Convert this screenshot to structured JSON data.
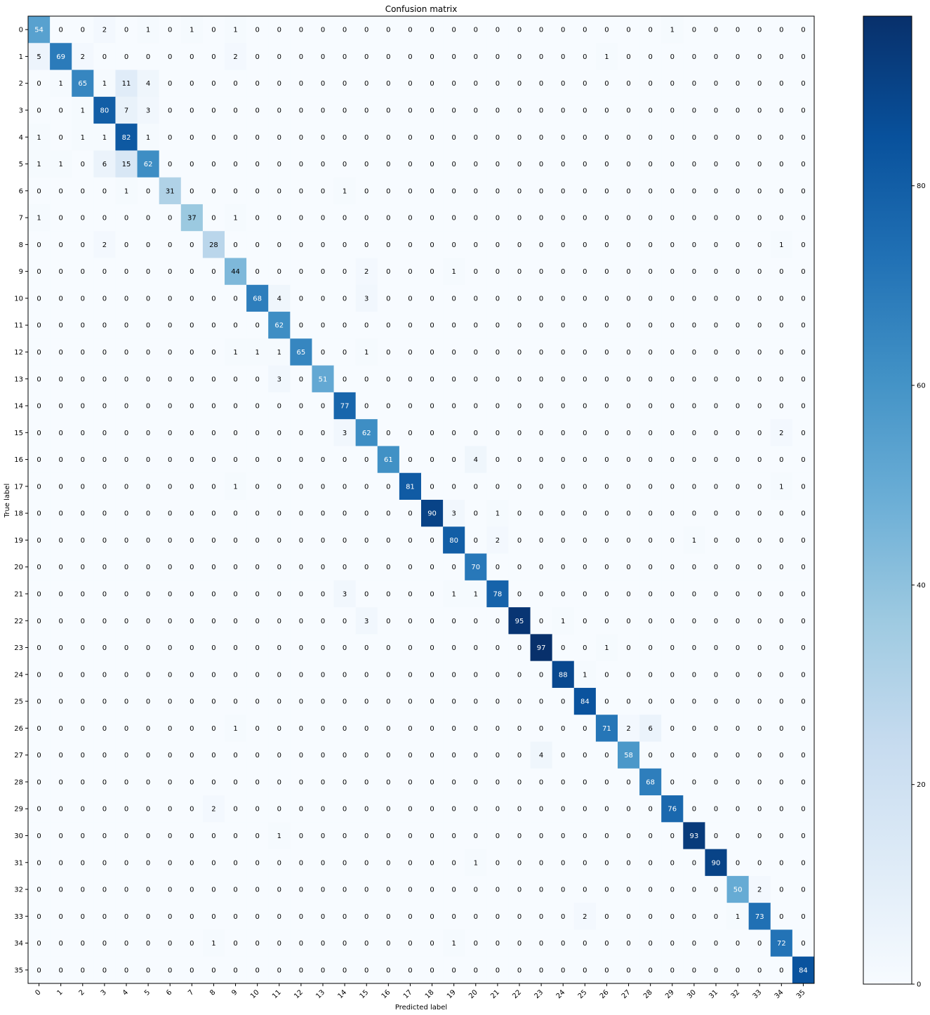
{
  "chart_data": {
    "type": "heatmap",
    "title": "Confusion matrix",
    "xlabel": "Predicted label",
    "ylabel": "True label",
    "x_categories": [
      "0",
      "1",
      "2",
      "3",
      "4",
      "5",
      "6",
      "7",
      "8",
      "9",
      "10",
      "11",
      "12",
      "13",
      "14",
      "15",
      "16",
      "17",
      "18",
      "19",
      "20",
      "21",
      "22",
      "23",
      "24",
      "25",
      "26",
      "27",
      "28",
      "29",
      "30",
      "31",
      "32",
      "33",
      "34",
      "35"
    ],
    "y_categories": [
      "0",
      "1",
      "2",
      "3",
      "4",
      "5",
      "6",
      "7",
      "8",
      "9",
      "10",
      "11",
      "12",
      "13",
      "14",
      "15",
      "16",
      "17",
      "18",
      "19",
      "20",
      "21",
      "22",
      "23",
      "24",
      "25",
      "26",
      "27",
      "28",
      "29",
      "30",
      "31",
      "32",
      "33",
      "34",
      "35"
    ],
    "values": [
      [
        54,
        0,
        0,
        2,
        0,
        1,
        0,
        1,
        0,
        1,
        0,
        0,
        0,
        0,
        0,
        0,
        0,
        0,
        0,
        0,
        0,
        0,
        0,
        0,
        0,
        0,
        0,
        0,
        0,
        1,
        0,
        0,
        0,
        0,
        0,
        0
      ],
      [
        5,
        69,
        2,
        0,
        0,
        0,
        0,
        0,
        0,
        2,
        0,
        0,
        0,
        0,
        0,
        0,
        0,
        0,
        0,
        0,
        0,
        0,
        0,
        0,
        0,
        0,
        1,
        0,
        0,
        0,
        0,
        0,
        0,
        0,
        0,
        0
      ],
      [
        0,
        1,
        65,
        1,
        11,
        4,
        0,
        0,
        0,
        0,
        0,
        0,
        0,
        0,
        0,
        0,
        0,
        0,
        0,
        0,
        0,
        0,
        0,
        0,
        0,
        0,
        0,
        0,
        0,
        0,
        0,
        0,
        0,
        0,
        0,
        0
      ],
      [
        0,
        0,
        1,
        80,
        7,
        3,
        0,
        0,
        0,
        0,
        0,
        0,
        0,
        0,
        0,
        0,
        0,
        0,
        0,
        0,
        0,
        0,
        0,
        0,
        0,
        0,
        0,
        0,
        0,
        0,
        0,
        0,
        0,
        0,
        0,
        0
      ],
      [
        1,
        0,
        1,
        1,
        82,
        1,
        0,
        0,
        0,
        0,
        0,
        0,
        0,
        0,
        0,
        0,
        0,
        0,
        0,
        0,
        0,
        0,
        0,
        0,
        0,
        0,
        0,
        0,
        0,
        0,
        0,
        0,
        0,
        0,
        0,
        0
      ],
      [
        1,
        1,
        0,
        6,
        15,
        62,
        0,
        0,
        0,
        0,
        0,
        0,
        0,
        0,
        0,
        0,
        0,
        0,
        0,
        0,
        0,
        0,
        0,
        0,
        0,
        0,
        0,
        0,
        0,
        0,
        0,
        0,
        0,
        0,
        0,
        0
      ],
      [
        0,
        0,
        0,
        0,
        1,
        0,
        31,
        0,
        0,
        0,
        0,
        0,
        0,
        0,
        1,
        0,
        0,
        0,
        0,
        0,
        0,
        0,
        0,
        0,
        0,
        0,
        0,
        0,
        0,
        0,
        0,
        0,
        0,
        0,
        0,
        0
      ],
      [
        1,
        0,
        0,
        0,
        0,
        0,
        0,
        37,
        0,
        1,
        0,
        0,
        0,
        0,
        0,
        0,
        0,
        0,
        0,
        0,
        0,
        0,
        0,
        0,
        0,
        0,
        0,
        0,
        0,
        0,
        0,
        0,
        0,
        0,
        0,
        0
      ],
      [
        0,
        0,
        0,
        2,
        0,
        0,
        0,
        0,
        28,
        0,
        0,
        0,
        0,
        0,
        0,
        0,
        0,
        0,
        0,
        0,
        0,
        0,
        0,
        0,
        0,
        0,
        0,
        0,
        0,
        0,
        0,
        0,
        0,
        0,
        1,
        0
      ],
      [
        0,
        0,
        0,
        0,
        0,
        0,
        0,
        0,
        0,
        44,
        0,
        0,
        0,
        0,
        0,
        2,
        0,
        0,
        0,
        1,
        0,
        0,
        0,
        0,
        0,
        0,
        0,
        0,
        0,
        0,
        0,
        0,
        0,
        0,
        0,
        0
      ],
      [
        0,
        0,
        0,
        0,
        0,
        0,
        0,
        0,
        0,
        0,
        68,
        4,
        0,
        0,
        0,
        3,
        0,
        0,
        0,
        0,
        0,
        0,
        0,
        0,
        0,
        0,
        0,
        0,
        0,
        0,
        0,
        0,
        0,
        0,
        0,
        0
      ],
      [
        0,
        0,
        0,
        0,
        0,
        0,
        0,
        0,
        0,
        0,
        0,
        62,
        0,
        0,
        0,
        0,
        0,
        0,
        0,
        0,
        0,
        0,
        0,
        0,
        0,
        0,
        0,
        0,
        0,
        0,
        0,
        0,
        0,
        0,
        0,
        0
      ],
      [
        0,
        0,
        0,
        0,
        0,
        0,
        0,
        0,
        0,
        1,
        1,
        1,
        65,
        0,
        0,
        1,
        0,
        0,
        0,
        0,
        0,
        0,
        0,
        0,
        0,
        0,
        0,
        0,
        0,
        0,
        0,
        0,
        0,
        0,
        0,
        0
      ],
      [
        0,
        0,
        0,
        0,
        0,
        0,
        0,
        0,
        0,
        0,
        0,
        3,
        0,
        51,
        0,
        0,
        0,
        0,
        0,
        0,
        0,
        0,
        0,
        0,
        0,
        0,
        0,
        0,
        0,
        0,
        0,
        0,
        0,
        0,
        0,
        0
      ],
      [
        0,
        0,
        0,
        0,
        0,
        0,
        0,
        0,
        0,
        0,
        0,
        0,
        0,
        0,
        77,
        0,
        0,
        0,
        0,
        0,
        0,
        0,
        0,
        0,
        0,
        0,
        0,
        0,
        0,
        0,
        0,
        0,
        0,
        0,
        0,
        0
      ],
      [
        0,
        0,
        0,
        0,
        0,
        0,
        0,
        0,
        0,
        0,
        0,
        0,
        0,
        0,
        3,
        62,
        0,
        0,
        0,
        0,
        0,
        0,
        0,
        0,
        0,
        0,
        0,
        0,
        0,
        0,
        0,
        0,
        0,
        0,
        2,
        0
      ],
      [
        0,
        0,
        0,
        0,
        0,
        0,
        0,
        0,
        0,
        0,
        0,
        0,
        0,
        0,
        0,
        0,
        61,
        0,
        0,
        0,
        4,
        0,
        0,
        0,
        0,
        0,
        0,
        0,
        0,
        0,
        0,
        0,
        0,
        0,
        0,
        0
      ],
      [
        0,
        0,
        0,
        0,
        0,
        0,
        0,
        0,
        0,
        1,
        0,
        0,
        0,
        0,
        0,
        0,
        0,
        81,
        0,
        0,
        0,
        0,
        0,
        0,
        0,
        0,
        0,
        0,
        0,
        0,
        0,
        0,
        0,
        0,
        1,
        0
      ],
      [
        0,
        0,
        0,
        0,
        0,
        0,
        0,
        0,
        0,
        0,
        0,
        0,
        0,
        0,
        0,
        0,
        0,
        0,
        90,
        3,
        0,
        1,
        0,
        0,
        0,
        0,
        0,
        0,
        0,
        0,
        0,
        0,
        0,
        0,
        0,
        0
      ],
      [
        0,
        0,
        0,
        0,
        0,
        0,
        0,
        0,
        0,
        0,
        0,
        0,
        0,
        0,
        0,
        0,
        0,
        0,
        0,
        80,
        0,
        2,
        0,
        0,
        0,
        0,
        0,
        0,
        0,
        0,
        1,
        0,
        0,
        0,
        0,
        0
      ],
      [
        0,
        0,
        0,
        0,
        0,
        0,
        0,
        0,
        0,
        0,
        0,
        0,
        0,
        0,
        0,
        0,
        0,
        0,
        0,
        0,
        70,
        0,
        0,
        0,
        0,
        0,
        0,
        0,
        0,
        0,
        0,
        0,
        0,
        0,
        0,
        0
      ],
      [
        0,
        0,
        0,
        0,
        0,
        0,
        0,
        0,
        0,
        0,
        0,
        0,
        0,
        0,
        3,
        0,
        0,
        0,
        0,
        1,
        1,
        78,
        0,
        0,
        0,
        0,
        0,
        0,
        0,
        0,
        0,
        0,
        0,
        0,
        0,
        0
      ],
      [
        0,
        0,
        0,
        0,
        0,
        0,
        0,
        0,
        0,
        0,
        0,
        0,
        0,
        0,
        0,
        3,
        0,
        0,
        0,
        0,
        0,
        0,
        95,
        0,
        1,
        0,
        0,
        0,
        0,
        0,
        0,
        0,
        0,
        0,
        0,
        0
      ],
      [
        0,
        0,
        0,
        0,
        0,
        0,
        0,
        0,
        0,
        0,
        0,
        0,
        0,
        0,
        0,
        0,
        0,
        0,
        0,
        0,
        0,
        0,
        0,
        97,
        0,
        0,
        1,
        0,
        0,
        0,
        0,
        0,
        0,
        0,
        0,
        0
      ],
      [
        0,
        0,
        0,
        0,
        0,
        0,
        0,
        0,
        0,
        0,
        0,
        0,
        0,
        0,
        0,
        0,
        0,
        0,
        0,
        0,
        0,
        0,
        0,
        0,
        88,
        1,
        0,
        0,
        0,
        0,
        0,
        0,
        0,
        0,
        0,
        0
      ],
      [
        0,
        0,
        0,
        0,
        0,
        0,
        0,
        0,
        0,
        0,
        0,
        0,
        0,
        0,
        0,
        0,
        0,
        0,
        0,
        0,
        0,
        0,
        0,
        0,
        0,
        84,
        0,
        0,
        0,
        0,
        0,
        0,
        0,
        0,
        0,
        0
      ],
      [
        0,
        0,
        0,
        0,
        0,
        0,
        0,
        0,
        0,
        1,
        0,
        0,
        0,
        0,
        0,
        0,
        0,
        0,
        0,
        0,
        0,
        0,
        0,
        0,
        0,
        0,
        71,
        2,
        6,
        0,
        0,
        0,
        0,
        0,
        0,
        0
      ],
      [
        0,
        0,
        0,
        0,
        0,
        0,
        0,
        0,
        0,
        0,
        0,
        0,
        0,
        0,
        0,
        0,
        0,
        0,
        0,
        0,
        0,
        0,
        0,
        4,
        0,
        0,
        0,
        58,
        0,
        0,
        0,
        0,
        0,
        0,
        0,
        0
      ],
      [
        0,
        0,
        0,
        0,
        0,
        0,
        0,
        0,
        0,
        0,
        0,
        0,
        0,
        0,
        0,
        0,
        0,
        0,
        0,
        0,
        0,
        0,
        0,
        0,
        0,
        0,
        0,
        0,
        68,
        0,
        0,
        0,
        0,
        0,
        0,
        0
      ],
      [
        0,
        0,
        0,
        0,
        0,
        0,
        0,
        0,
        2,
        0,
        0,
        0,
        0,
        0,
        0,
        0,
        0,
        0,
        0,
        0,
        0,
        0,
        0,
        0,
        0,
        0,
        0,
        0,
        0,
        76,
        0,
        0,
        0,
        0,
        0,
        0
      ],
      [
        0,
        0,
        0,
        0,
        0,
        0,
        0,
        0,
        0,
        0,
        0,
        1,
        0,
        0,
        0,
        0,
        0,
        0,
        0,
        0,
        0,
        0,
        0,
        0,
        0,
        0,
        0,
        0,
        0,
        0,
        93,
        0,
        0,
        0,
        0,
        0
      ],
      [
        0,
        0,
        0,
        0,
        0,
        0,
        0,
        0,
        0,
        0,
        0,
        0,
        0,
        0,
        0,
        0,
        0,
        0,
        0,
        0,
        1,
        0,
        0,
        0,
        0,
        0,
        0,
        0,
        0,
        0,
        0,
        90,
        0,
        0,
        0,
        0
      ],
      [
        0,
        0,
        0,
        0,
        0,
        0,
        0,
        0,
        0,
        0,
        0,
        0,
        0,
        0,
        0,
        0,
        0,
        0,
        0,
        0,
        0,
        0,
        0,
        0,
        0,
        0,
        0,
        0,
        0,
        0,
        0,
        0,
        50,
        2,
        0,
        0
      ],
      [
        0,
        0,
        0,
        0,
        0,
        0,
        0,
        0,
        0,
        0,
        0,
        0,
        0,
        0,
        0,
        0,
        0,
        0,
        0,
        0,
        0,
        0,
        0,
        0,
        0,
        2,
        0,
        0,
        0,
        0,
        0,
        0,
        1,
        73,
        0,
        0
      ],
      [
        0,
        0,
        0,
        0,
        0,
        0,
        0,
        0,
        1,
        0,
        0,
        0,
        0,
        0,
        0,
        0,
        0,
        0,
        0,
        1,
        0,
        0,
        0,
        0,
        0,
        0,
        0,
        0,
        0,
        0,
        0,
        0,
        0,
        0,
        72,
        0
      ],
      [
        0,
        0,
        0,
        0,
        0,
        0,
        0,
        0,
        0,
        0,
        0,
        0,
        0,
        0,
        0,
        0,
        0,
        0,
        0,
        0,
        0,
        0,
        0,
        0,
        0,
        0,
        0,
        0,
        0,
        0,
        0,
        0,
        0,
        0,
        0,
        84
      ]
    ],
    "vmin": 0,
    "vmax": 97,
    "colormap": "Blues",
    "colorbar_ticks": [
      0,
      20,
      40,
      60,
      80
    ],
    "grid": false,
    "x_tick_rotation": 45,
    "colors": {
      "low": "#f7fbff",
      "high": "#08306b",
      "text_dark": "#000000",
      "text_light": "#ffffff"
    }
  }
}
